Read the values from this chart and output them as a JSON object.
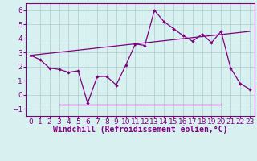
{
  "title": "",
  "xlabel": "Windchill (Refroidissement éolien,°C)",
  "ylabel": "",
  "background_color": "#d8f0f0",
  "line_color": "#800080",
  "grid_color": "#aacccc",
  "xlim": [
    -0.5,
    23.5
  ],
  "ylim": [
    -1.5,
    6.5
  ],
  "xticks": [
    0,
    1,
    2,
    3,
    4,
    5,
    6,
    7,
    8,
    9,
    10,
    11,
    12,
    13,
    14,
    15,
    16,
    17,
    18,
    19,
    20,
    21,
    22,
    23
  ],
  "yticks": [
    -1,
    0,
    1,
    2,
    3,
    4,
    5,
    6
  ],
  "line1_x": [
    0,
    1,
    2,
    3,
    4,
    5,
    6,
    7,
    8,
    9,
    10,
    11,
    12,
    13,
    14,
    15,
    16,
    17,
    18,
    19,
    20,
    21,
    22,
    23
  ],
  "line1_y": [
    2.8,
    2.5,
    1.9,
    1.8,
    1.6,
    1.7,
    -0.6,
    1.3,
    1.3,
    0.7,
    2.1,
    3.6,
    3.5,
    6.0,
    5.2,
    4.7,
    4.2,
    3.8,
    4.3,
    3.7,
    4.5,
    1.9,
    0.8,
    0.4
  ],
  "line2_x": [
    0,
    23
  ],
  "line2_y": [
    2.8,
    4.5
  ],
  "line3_x": [
    3,
    20
  ],
  "line3_y": [
    -0.7,
    -0.7
  ],
  "tick_fontsize": 6.5,
  "xlabel_fontsize": 7
}
